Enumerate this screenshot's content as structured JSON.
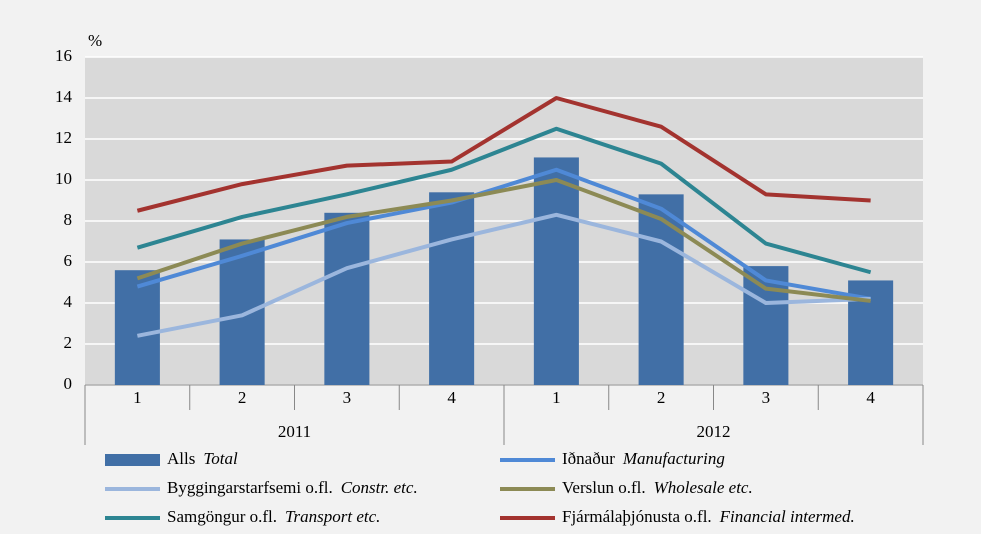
{
  "chart_data": {
    "type": "combo",
    "y_label": "%",
    "categories": [
      "1",
      "2",
      "3",
      "4",
      "1",
      "2",
      "3",
      "4"
    ],
    "category_groups": [
      "2011",
      "2012"
    ],
    "ylim": [
      0,
      16
    ],
    "yticks": [
      0,
      2,
      4,
      6,
      8,
      10,
      12,
      14,
      16
    ],
    "grid": true,
    "series": [
      {
        "name": "Alls",
        "name_en": "Total",
        "type": "bar",
        "color": "#416fa6",
        "values": [
          5.6,
          7.1,
          8.4,
          9.4,
          11.1,
          9.3,
          5.8,
          5.1
        ]
      },
      {
        "name": "Iðnaður",
        "name_en": "Manufacturing",
        "type": "line",
        "color": "#4f89d6",
        "values": [
          4.8,
          6.3,
          7.9,
          8.9,
          10.5,
          8.6,
          5.1,
          4.2
        ]
      },
      {
        "name": "Byggingarstarfsemi o.fl.",
        "name_en": "Constr. etc.",
        "type": "line",
        "color": "#9bb6dd",
        "values": [
          2.4,
          3.4,
          5.7,
          7.1,
          8.3,
          7.0,
          4.0,
          4.2
        ]
      },
      {
        "name": "Verslun o.fl.",
        "name_en": "Wholesale etc.",
        "type": "line",
        "color": "#8c8a55",
        "values": [
          5.2,
          6.9,
          8.2,
          9.0,
          10.0,
          8.1,
          4.7,
          4.1
        ]
      },
      {
        "name": "Samgöngur o.fl.",
        "name_en": "Transport etc.",
        "type": "line",
        "color": "#2d8592",
        "values": [
          6.7,
          8.2,
          9.3,
          10.5,
          12.5,
          10.8,
          6.9,
          5.5
        ]
      },
      {
        "name": "Fjármálaþjónusta o.fl.",
        "name_en": "Financial intermed.",
        "type": "line",
        "color": "#a3332f",
        "values": [
          8.5,
          9.8,
          10.7,
          10.9,
          14.0,
          12.6,
          9.3,
          9.0
        ]
      }
    ]
  }
}
